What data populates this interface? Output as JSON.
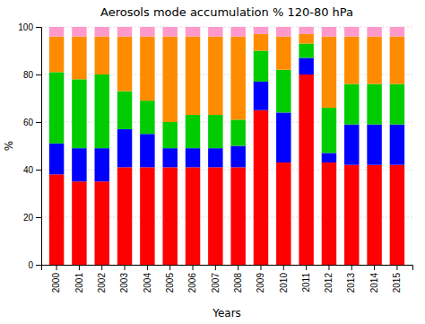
{
  "chart_data": {
    "type": "bar",
    "title": "Aerosols mode accumulation % 120-80 hPa",
    "xlabel": "Years",
    "ylabel": "%",
    "categories": [
      "2000",
      "2001",
      "2002",
      "2003",
      "2004",
      "2005",
      "2006",
      "2007",
      "2008",
      "2009",
      "2010",
      "2011",
      "2012",
      "2013",
      "2014",
      "2015"
    ],
    "series": [
      {
        "color": "#ff0000",
        "values": [
          38,
          35,
          35,
          41,
          41,
          41,
          41,
          41,
          41,
          65,
          43,
          80,
          43,
          42,
          42,
          42
        ]
      },
      {
        "color": "#0000ff",
        "values": [
          13,
          14,
          14,
          16,
          14,
          8,
          8,
          8,
          9,
          12,
          21,
          7,
          4,
          17,
          17,
          17
        ]
      },
      {
        "color": "#00cc00",
        "values": [
          30,
          29,
          31,
          16,
          14,
          11,
          14,
          14,
          11,
          13,
          18,
          6,
          19,
          17,
          17,
          17
        ]
      },
      {
        "color": "#ff8c00",
        "values": [
          15,
          18,
          16,
          23,
          27,
          36,
          33,
          33,
          35,
          7,
          14,
          4,
          30,
          20,
          20,
          20
        ]
      },
      {
        "color": "#ff99cc",
        "values": [
          4,
          4,
          4,
          4,
          4,
          4,
          4,
          4,
          4,
          3,
          4,
          3,
          4,
          4,
          4,
          4
        ]
      }
    ],
    "stacked": true,
    "ylim": [
      0,
      100
    ],
    "yticks": [
      0,
      20,
      40,
      60,
      80,
      100
    ],
    "grid": true
  }
}
